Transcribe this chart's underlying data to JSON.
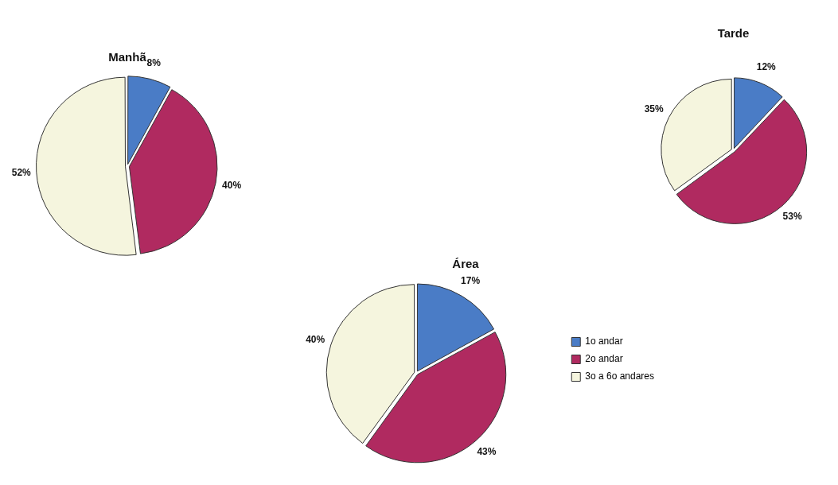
{
  "chart_data": {
    "type": "pie",
    "categories": [
      "1o andar",
      "2o andar",
      "3o a 6o andares"
    ],
    "colors": [
      "#4a7cc6",
      "#b02a60",
      "#f5f5de"
    ],
    "legend": "bottom right",
    "series": [
      {
        "name": "Manhã",
        "values": [
          8,
          40,
          52
        ],
        "value_labels": [
          "8%",
          "40%",
          "52%"
        ]
      },
      {
        "name": "Tarde",
        "values": [
          12,
          53,
          35
        ],
        "value_labels": [
          "12%",
          "53%",
          "35%"
        ]
      },
      {
        "name": "Área",
        "values": [
          17,
          43,
          40
        ],
        "value_labels": [
          "17%",
          "43%",
          "40%"
        ]
      }
    ]
  }
}
